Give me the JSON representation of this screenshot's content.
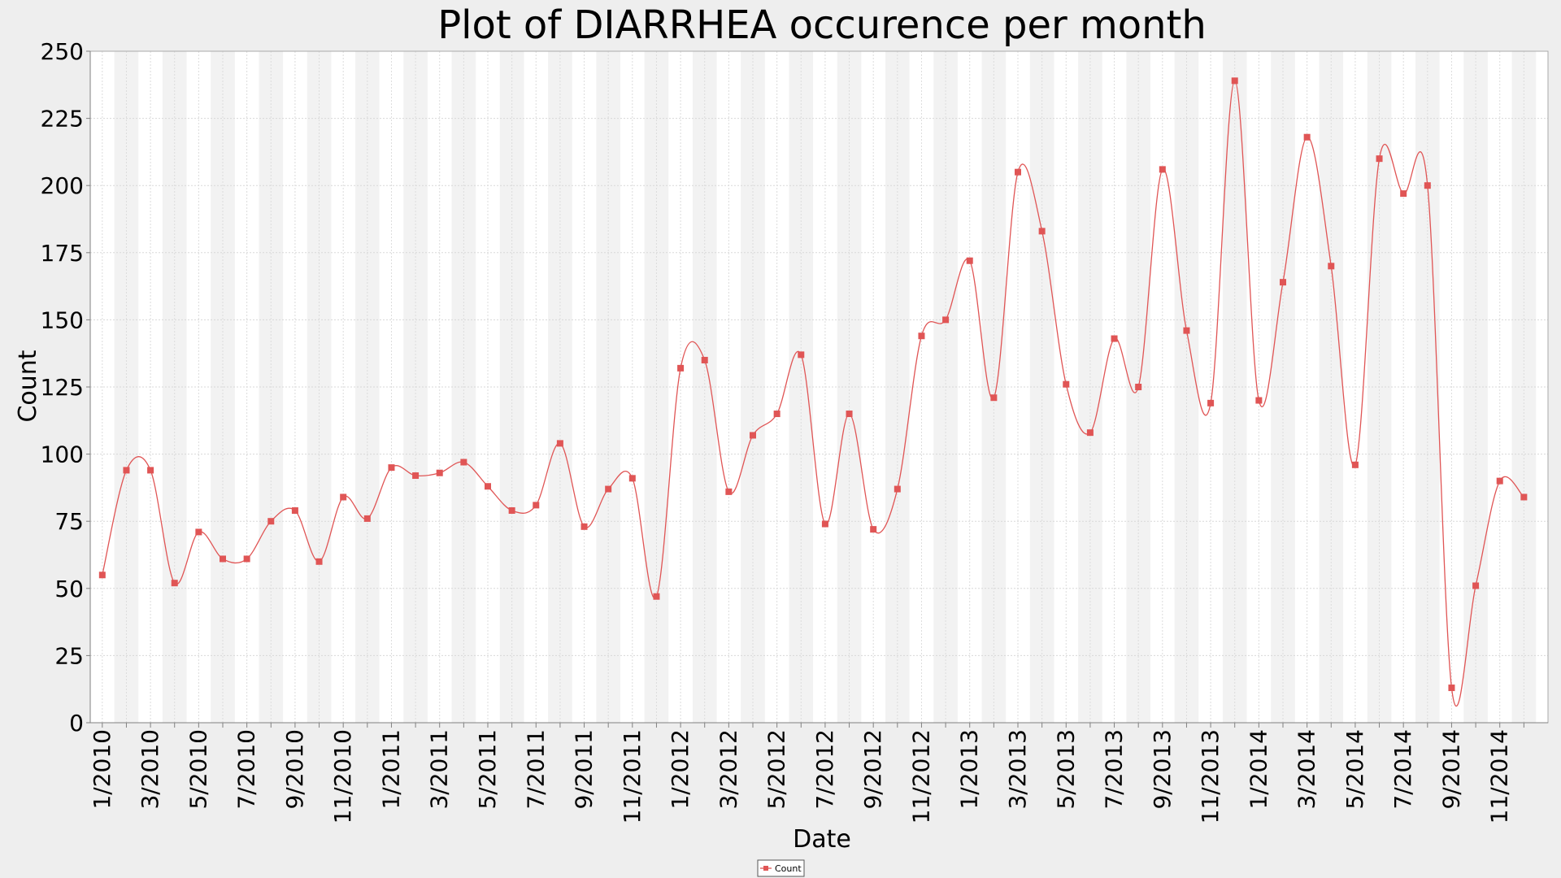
{
  "chart_data": {
    "type": "line",
    "title": "Plot of DIARRHEA occurence per month",
    "xlabel": "Date",
    "ylabel": "Count",
    "ylim": [
      0,
      250
    ],
    "yticks": [
      0,
      25,
      50,
      75,
      100,
      125,
      150,
      175,
      200,
      225,
      250
    ],
    "xtick_labels": [
      "1/2010",
      "3/2010",
      "5/2010",
      "7/2010",
      "9/2010",
      "11/2010",
      "1/2011",
      "3/2011",
      "5/2011",
      "7/2011",
      "9/2011",
      "11/2011",
      "1/2012",
      "3/2012",
      "5/2012",
      "7/2012",
      "9/2012",
      "11/2012",
      "1/2013",
      "3/2013",
      "5/2013",
      "7/2013",
      "9/2013",
      "11/2013",
      "1/2014",
      "3/2014",
      "5/2014",
      "7/2014",
      "9/2014",
      "11/2014"
    ],
    "grid": true,
    "legend": "bottom-center",
    "series": [
      {
        "name": "Count",
        "color": "#e05555",
        "x": [
          "1/2010",
          "2/2010",
          "3/2010",
          "4/2010",
          "5/2010",
          "6/2010",
          "7/2010",
          "8/2010",
          "9/2010",
          "10/2010",
          "11/2010",
          "12/2010",
          "1/2011",
          "2/2011",
          "3/2011",
          "4/2011",
          "5/2011",
          "6/2011",
          "7/2011",
          "8/2011",
          "9/2011",
          "10/2011",
          "11/2011",
          "12/2011",
          "1/2012",
          "2/2012",
          "3/2012",
          "4/2012",
          "5/2012",
          "6/2012",
          "7/2012",
          "8/2012",
          "9/2012",
          "10/2012",
          "11/2012",
          "12/2012",
          "1/2013",
          "2/2013",
          "3/2013",
          "4/2013",
          "5/2013",
          "6/2013",
          "7/2013",
          "8/2013",
          "9/2013",
          "10/2013",
          "11/2013",
          "12/2013",
          "1/2014",
          "2/2014",
          "3/2014",
          "4/2014",
          "5/2014",
          "6/2014",
          "7/2014",
          "8/2014",
          "9/2014",
          "10/2014",
          "11/2014",
          "12/2014"
        ],
        "values": [
          55,
          94,
          94,
          52,
          71,
          61,
          61,
          75,
          79,
          60,
          84,
          76,
          95,
          92,
          93,
          97,
          88,
          79,
          81,
          104,
          73,
          87,
          91,
          47,
          132,
          135,
          86,
          107,
          115,
          137,
          74,
          115,
          72,
          87,
          144,
          150,
          172,
          121,
          205,
          183,
          126,
          108,
          143,
          125,
          206,
          146,
          119,
          239,
          120,
          164,
          218,
          170,
          96,
          210,
          197,
          200,
          13,
          51,
          90,
          84
        ]
      }
    ]
  }
}
